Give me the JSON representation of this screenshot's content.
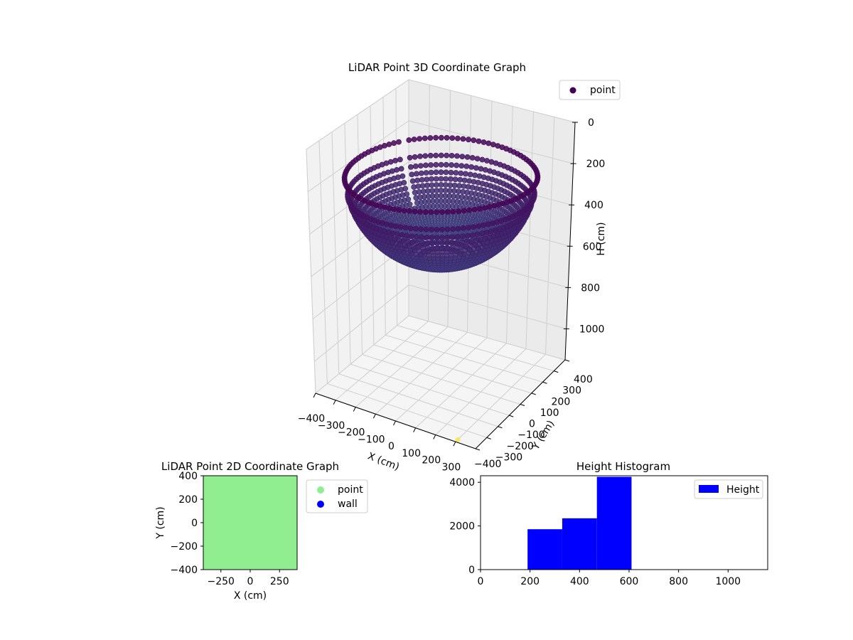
{
  "figure": {
    "background": "#ffffff"
  },
  "chart_data": [
    {
      "id": "chart3d",
      "type": "scatter",
      "projection": "3d",
      "title": "LiDAR Point 3D Coordinate Graph",
      "xlabel": "X (cm)",
      "ylabel": "Y (cm)",
      "zlabel": "H (cm)",
      "xlim": [
        -400,
        400
      ],
      "ylim": [
        -400,
        400
      ],
      "zlim": [
        0,
        1150
      ],
      "z_inverted": true,
      "x_ticks": [
        -400,
        -300,
        -200,
        -100,
        0,
        100,
        200,
        300
      ],
      "y_ticks": [
        -400,
        -300,
        -200,
        -100,
        0,
        100,
        200,
        300,
        400
      ],
      "z_ticks": [
        0,
        200,
        400,
        600,
        800,
        1000
      ],
      "x_tick_labels": [
        "−400",
        "−300",
        "−200",
        "−100",
        "0",
        "100",
        "200",
        "300"
      ],
      "y_tick_labels": [
        "−400",
        "−300",
        "−200",
        "−100",
        "0",
        "100",
        "200",
        "300",
        "400"
      ],
      "z_tick_labels": [
        "0",
        "200",
        "400",
        "600",
        "800",
        "1000"
      ],
      "colormap": "viridis",
      "legend": {
        "placement": "top-right",
        "entries": [
          {
            "label": "point",
            "color": "#440154"
          }
        ]
      },
      "series": [
        {
          "name": "point",
          "shape": "hemisphere",
          "center": [
            0,
            0,
            0
          ],
          "radius": 400,
          "min_height": 190,
          "max_height": 600,
          "color_low": "#440154",
          "color_high": "#3b528b"
        },
        {
          "shape": "single",
          "x": 300,
          "y": -380,
          "z": 1150,
          "color": "#fde725"
        }
      ],
      "grid": true
    },
    {
      "id": "chart2d",
      "type": "scatter",
      "title": "LiDAR Point 2D Coordinate Graph",
      "xlabel": "X (cm)",
      "ylabel": "Y (cm)",
      "xlim": [
        -400,
        400
      ],
      "ylim": [
        -400,
        400
      ],
      "x_ticks": [
        -250,
        0,
        250
      ],
      "x_tick_labels": [
        "−250",
        "0",
        "250"
      ],
      "y_ticks": [
        -400,
        -200,
        0,
        200,
        400
      ],
      "y_tick_labels": [
        "−400",
        "−200",
        "0",
        "200",
        "400"
      ],
      "grid": false,
      "legend": {
        "placement": "outside-right",
        "entries": [
          {
            "label": "point",
            "color": "#90ee90"
          },
          {
            "label": "wall",
            "color": "#0000ff"
          }
        ]
      },
      "fill_region": {
        "x": [
          -400,
          400
        ],
        "y": [
          -400,
          400
        ],
        "color": "#90ee90"
      }
    },
    {
      "id": "hist",
      "type": "bar",
      "title": "Height Histogram",
      "xlim": [
        0,
        1160
      ],
      "ylim": [
        0,
        4300
      ],
      "x_ticks": [
        0,
        200,
        400,
        600,
        800,
        1000
      ],
      "x_tick_labels": [
        "0",
        "200",
        "400",
        "600",
        "800",
        "1000"
      ],
      "y_ticks": [
        0,
        2000,
        4000
      ],
      "y_tick_labels": [
        "0",
        "2000",
        "4000"
      ],
      "grid": false,
      "color": "#0000ff",
      "legend": {
        "placement": "top-right",
        "entries": [
          {
            "label": "Height",
            "color": "#0000ff"
          }
        ]
      },
      "bins": [
        {
          "start": 190,
          "end": 330,
          "count": 1850
        },
        {
          "start": 330,
          "end": 470,
          "count": 2350
        },
        {
          "start": 470,
          "end": 610,
          "count": 4250
        }
      ]
    }
  ]
}
